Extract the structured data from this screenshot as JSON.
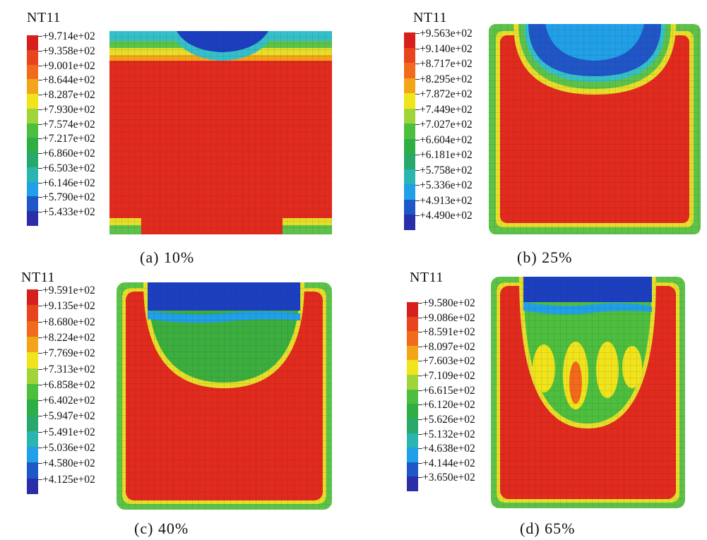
{
  "panels": [
    {
      "id": "a",
      "variable": "NT11",
      "caption": "(a) 10%",
      "legend_labels": [
        "+9.714e+02",
        "+9.358e+02",
        "+9.001e+02",
        "+8.644e+02",
        "+8.287e+02",
        "+7.930e+02",
        "+7.574e+02",
        "+7.217e+02",
        "+6.860e+02",
        "+6.503e+02",
        "+6.146e+02",
        "+5.790e+02",
        "+5.433e+02"
      ]
    },
    {
      "id": "b",
      "variable": "NT11",
      "caption": "(b) 25%",
      "legend_labels": [
        "+9.563e+02",
        "+9.140e+02",
        "+8.717e+02",
        "+8.295e+02",
        "+7.872e+02",
        "+7.449e+02",
        "+7.027e+02",
        "+6.604e+02",
        "+6.181e+02",
        "+5.758e+02",
        "+5.336e+02",
        "+4.913e+02",
        "+4.490e+02"
      ]
    },
    {
      "id": "c",
      "variable": "NT11",
      "caption": "(c) 40%",
      "legend_labels": [
        "+9.591e+02",
        "+9.135e+02",
        "+8.680e+02",
        "+8.224e+02",
        "+7.769e+02",
        "+7.313e+02",
        "+6.858e+02",
        "+6.402e+02",
        "+5.947e+02",
        "+5.491e+02",
        "+5.036e+02",
        "+4.580e+02",
        "+4.125e+02"
      ]
    },
    {
      "id": "d",
      "variable": "NT11",
      "caption": "(d) 65%",
      "legend_labels": [
        "+9.580e+02",
        "+9.086e+02",
        "+8.591e+02",
        "+8.097e+02",
        "+7.603e+02",
        "+7.109e+02",
        "+6.615e+02",
        "+6.120e+02",
        "+5.626e+02",
        "+5.132e+02",
        "+4.638e+02",
        "+4.144e+02",
        "+3.650e+02"
      ]
    }
  ],
  "colors": {
    "legend_scale": [
      "#d7201c",
      "#e8441e",
      "#f26a1c",
      "#f3a51a",
      "#f0e51c",
      "#9fd43a",
      "#4cbf3f",
      "#2fae44",
      "#28a86a",
      "#2ab5b0",
      "#1fa0e8",
      "#1f56c8",
      "#2a2ea8"
    ],
    "hot": "#e02b1e",
    "mid": "#3aaf3f",
    "cool": "#1a3fc0",
    "edge_yellow": "#e6df2a",
    "edge_green": "#5cc34a",
    "edge_cyan": "#34c0c9"
  }
}
